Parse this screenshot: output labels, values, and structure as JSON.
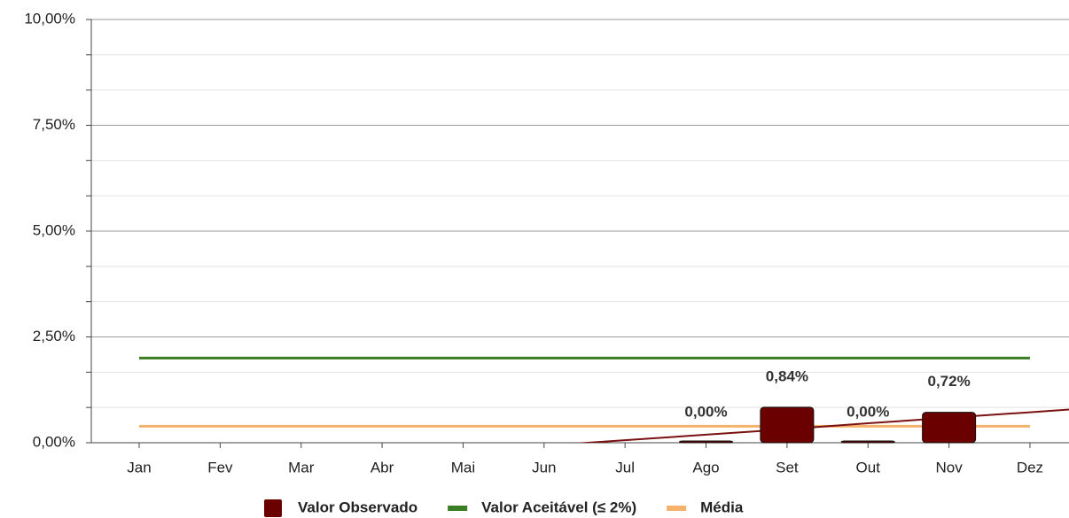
{
  "chart_data": {
    "type": "bar",
    "categories": [
      "Jan",
      "Fev",
      "Mar",
      "Abr",
      "Mai",
      "Jun",
      "Jul",
      "Ago",
      "Set",
      "Out",
      "Nov",
      "Dez"
    ],
    "ylim": [
      0,
      10
    ],
    "yticks": [
      {
        "value": 0,
        "label": "0,00%"
      },
      {
        "value": 2.5,
        "label": "2,50%"
      },
      {
        "value": 5,
        "label": "5,00%"
      },
      {
        "value": 7.5,
        "label": "7,50%"
      },
      {
        "value": 10,
        "label": "10,00%"
      }
    ],
    "minor_yticks": [
      0.8333,
      1.6667,
      3.3333,
      4.1667,
      5.8333,
      6.6667,
      8.3333,
      9.1667
    ],
    "grid": true,
    "series": [
      {
        "name": "Valor Observado",
        "type": "bar",
        "color": "#6b0000",
        "values": [
          null,
          null,
          null,
          null,
          null,
          null,
          null,
          0,
          0.84,
          0,
          0.72,
          null
        ],
        "value_labels": [
          null,
          null,
          null,
          null,
          null,
          null,
          null,
          "0,00%",
          "0,84%",
          "0,00%",
          "0,72%",
          null
        ]
      },
      {
        "name": "Valor Aceitável (≤ 2%)",
        "type": "line",
        "color": "#3a7d22",
        "values": [
          2,
          2,
          2,
          2,
          2,
          2,
          2,
          2,
          2,
          2,
          2,
          2
        ]
      },
      {
        "name": "Média",
        "type": "line",
        "color": "#f5b26b",
        "values": [
          0.39,
          0.39,
          0.39,
          0.39,
          0.39,
          0.39,
          0.39,
          0.39,
          0.39,
          0.39,
          0.39,
          0.39
        ]
      },
      {
        "type": "trend",
        "color": "#7a1010",
        "values": [
          null,
          null,
          null,
          null,
          null,
          -0.07,
          0.06,
          0.19,
          0.32,
          0.46,
          0.59,
          0.72
        ]
      }
    ]
  }
}
